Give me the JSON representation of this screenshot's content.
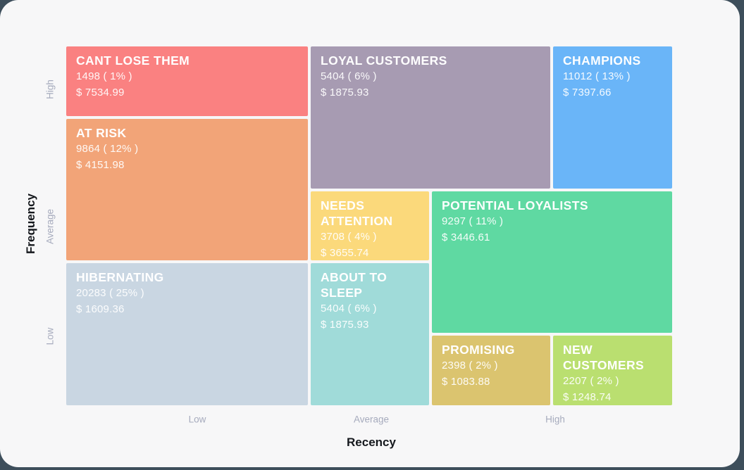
{
  "colors": {
    "page_background": "#3d4e5b",
    "card_background": "#f7f7f8",
    "axis_title": "#15181d",
    "axis_tick": "#a6abbd"
  },
  "chart_data": {
    "type": "treemap",
    "description": "RFM customer segmentation grid (Recency vs Frequency), each cell shows segment name, customer count with share percent, and average monetary value",
    "x_axis": {
      "label": "Recency",
      "ticks": [
        "Low",
        "Average",
        "High"
      ]
    },
    "y_axis": {
      "label": "Frequency",
      "ticks": [
        "High",
        "Average",
        "Low"
      ]
    },
    "segments": [
      {
        "name": "CANT LOSE THEM",
        "count": 1498,
        "percent": 1,
        "monetary": 7534.99,
        "count_label": "1498 ( 1% )",
        "monetary_label": "$ 7534.99",
        "color": "#fa8181",
        "layout": {
          "col_start": 1,
          "col_span": 1,
          "row_start": 1,
          "row_span": 1
        }
      },
      {
        "name": "LOYAL CUSTOMERS",
        "count": 5404,
        "percent": 6,
        "monetary": 1875.93,
        "count_label": "5404 ( 6% )",
        "monetary_label": "$ 1875.93",
        "color": "#a79bb2",
        "layout": {
          "col_start": 2,
          "col_span": 2,
          "row_start": 1,
          "row_span": 2
        }
      },
      {
        "name": "CHAMPIONS",
        "count": 11012,
        "percent": 13,
        "monetary": 7397.66,
        "count_label": "11012 ( 13% )",
        "monetary_label": "$ 7397.66",
        "color": "#6ab5f8",
        "layout": {
          "col_start": 4,
          "col_span": 1,
          "row_start": 1,
          "row_span": 2
        }
      },
      {
        "name": "AT RISK",
        "count": 9864,
        "percent": 12,
        "monetary": 4151.98,
        "count_label": "9864 ( 12% )",
        "monetary_label": "$ 4151.98",
        "color": "#f2a478",
        "layout": {
          "col_start": 1,
          "col_span": 1,
          "row_start": 2,
          "row_span": 2
        }
      },
      {
        "name": "NEEDS ATTENTION",
        "count": 3708,
        "percent": 4,
        "monetary": 3655.74,
        "count_label": "3708 ( 4% )",
        "monetary_label": "$ 3655.74",
        "color": "#fbd97b",
        "layout": {
          "col_start": 2,
          "col_span": 1,
          "row_start": 3,
          "row_span": 1
        }
      },
      {
        "name": "POTENTIAL LOYALISTS",
        "count": 9297,
        "percent": 11,
        "monetary": 3446.61,
        "count_label": "9297 ( 11% )",
        "monetary_label": "$ 3446.61",
        "color": "#5fd9a2",
        "layout": {
          "col_start": 3,
          "col_span": 2,
          "row_start": 3,
          "row_span": 2
        }
      },
      {
        "name": "HIBERNATING",
        "count": 20283,
        "percent": 25,
        "monetary": 1609.36,
        "count_label": "20283 ( 25% )",
        "monetary_label": "$ 1609.36",
        "color": "#c9d6e2",
        "layout": {
          "col_start": 1,
          "col_span": 1,
          "row_start": 4,
          "row_span": 2
        }
      },
      {
        "name": "ABOUT TO SLEEP",
        "count": 5404,
        "percent": 6,
        "monetary": 1875.93,
        "count_label": "5404 ( 6% )",
        "monetary_label": "$ 1875.93",
        "color": "#a0dbd9",
        "layout": {
          "col_start": 2,
          "col_span": 1,
          "row_start": 4,
          "row_span": 2
        }
      },
      {
        "name": "PROMISING",
        "count": 2398,
        "percent": 2,
        "monetary": 1083.88,
        "count_label": "2398 ( 2% )",
        "monetary_label": "$ 1083.88",
        "color": "#dbc46f",
        "layout": {
          "col_start": 3,
          "col_span": 1,
          "row_start": 5,
          "row_span": 1
        }
      },
      {
        "name": "NEW CUSTOMERS",
        "count": 2207,
        "percent": 2,
        "monetary": 1248.74,
        "count_label": "2207 ( 2% )",
        "monetary_label": "$ 1248.74",
        "color": "#badf70",
        "layout": {
          "col_start": 4,
          "col_span": 1,
          "row_start": 5,
          "row_span": 1
        }
      }
    ]
  }
}
